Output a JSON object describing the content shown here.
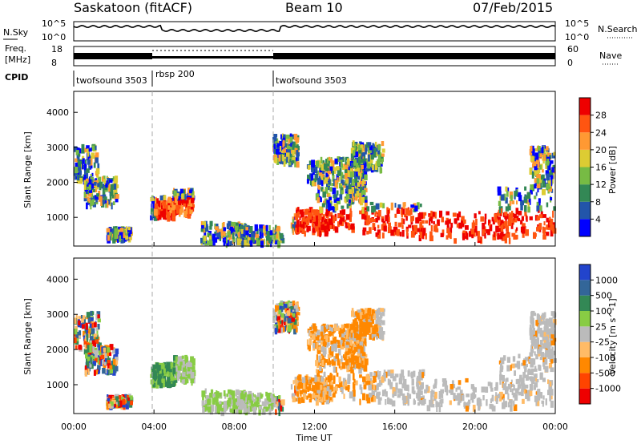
{
  "header": {
    "station": "Saskatoon (fitACF)",
    "beam": "Beam 10",
    "date": "07/Feb/2015"
  },
  "nsky_panel": {
    "left_label": "N.Sky",
    "right_label": "N.Search",
    "left_ticks": [
      "10^5",
      "10^0"
    ],
    "right_ticks": [
      "10^5",
      "10^0"
    ]
  },
  "freq_panel": {
    "left_label_top": "Freq.",
    "left_label_bottom": "[MHz]",
    "right_label": "Nave",
    "left_ticks": [
      "18",
      "8"
    ],
    "right_ticks": [
      "60",
      "0"
    ]
  },
  "cpid": {
    "label": "CPID",
    "segments": [
      {
        "name": "twofsound 3503",
        "start_hour": 0
      },
      {
        "name": "rbsp 200",
        "start_hour": 4
      },
      {
        "name": "twofsound 3503",
        "start_hour": 10
      }
    ]
  },
  "x_axis": {
    "label": "Time UT",
    "ticks": [
      "00:00",
      "04:00",
      "08:00",
      "12:00",
      "16:00",
      "20:00",
      "00:00"
    ]
  },
  "chart_data": [
    {
      "type": "heatmap",
      "quantity": "power",
      "ylabel": "Slant Range [km]",
      "yticks": [
        1000,
        2000,
        3000,
        4000
      ],
      "ylim": [
        180,
        4600
      ],
      "xlim_hours": [
        0,
        24
      ],
      "colorbar": {
        "title": "Power [dB]",
        "ticks": [
          "4",
          "8",
          "12",
          "16",
          "20",
          "24",
          "28"
        ]
      },
      "colors": [
        "#0000ff",
        "#2255aa",
        "#338855",
        "#77bb44",
        "#ddcc33",
        "#ff9933",
        "#ff5511",
        "#ee0000"
      ]
    },
    {
      "type": "heatmap",
      "quantity": "velocity",
      "ylabel": "Slant Range [km]",
      "yticks": [
        1000,
        2000,
        3000,
        4000
      ],
      "ylim": [
        180,
        4600
      ],
      "xlim_hours": [
        0,
        24
      ],
      "colorbar": {
        "title": "Velocity [m s^-1]",
        "ticks": [
          "1000",
          "500",
          "100",
          "25",
          "-25",
          "-100",
          "-500",
          "-1000"
        ]
      },
      "colors": [
        "#2244cc",
        "#336699",
        "#338855",
        "#88cc44",
        "#bbbbbb",
        "#ffbb66",
        "#ff8800",
        "#ff4400",
        "#ee0000"
      ]
    }
  ]
}
